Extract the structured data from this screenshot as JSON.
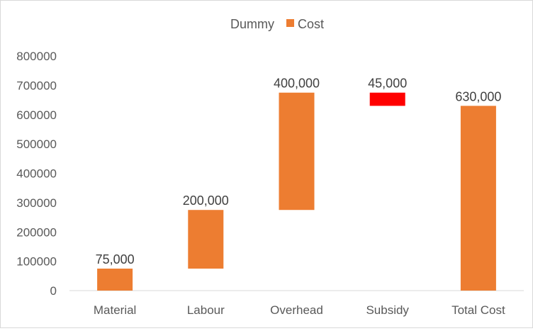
{
  "chart_data": {
    "type": "bar",
    "subtype": "waterfall-stacked",
    "categories": [
      "Material",
      "Labour",
      "Overhead",
      "Subsidy",
      "Total Cost"
    ],
    "series": [
      {
        "name": "Dummy",
        "values": [
          0,
          75000,
          275000,
          630000,
          0
        ],
        "visible": false
      },
      {
        "name": "Cost",
        "values": [
          75000,
          200000,
          400000,
          45000,
          630000
        ]
      }
    ],
    "data_labels": [
      "75,000",
      "200,000",
      "400,000",
      "45,000",
      "630,000"
    ],
    "ylim": [
      0,
      800000
    ],
    "yticks": [
      0,
      100000,
      200000,
      300000,
      400000,
      500000,
      600000,
      700000,
      800000
    ],
    "ytick_labels": [
      "0",
      "100000",
      "200000",
      "300000",
      "400000",
      "500000",
      "600000",
      "700000",
      "800000"
    ],
    "legend": {
      "position": "top",
      "items": [
        "Dummy",
        "Cost"
      ]
    },
    "grid": false,
    "colors": {
      "cost": "#ED7D31",
      "negative": "#FF0000",
      "axis": "#d9d9d9",
      "text": "#595959",
      "label": "#404040"
    },
    "bar_colors": [
      "#ED7D31",
      "#ED7D31",
      "#ED7D31",
      "#FF0000",
      "#ED7D31"
    ]
  }
}
